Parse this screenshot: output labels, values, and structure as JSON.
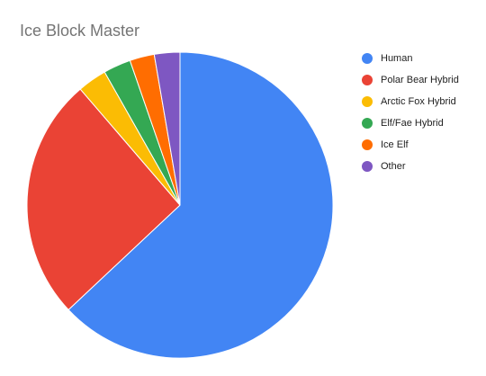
{
  "chart_data": {
    "type": "pie",
    "title": "Ice Block Master",
    "categories": [
      "Human",
      "Polar Bear Hybrid",
      "Arctic Fox Hybrid",
      "Elf/Fae Hybrid",
      "Ice Elf",
      "Other"
    ],
    "values": [
      63,
      25.7,
      3.1,
      2.9,
      2.6,
      2.7
    ],
    "colors": [
      "#4285f4",
      "#ea4335",
      "#fbbc04",
      "#34a853",
      "#ff6d01",
      "#7e57c2"
    ],
    "legend": "right"
  }
}
